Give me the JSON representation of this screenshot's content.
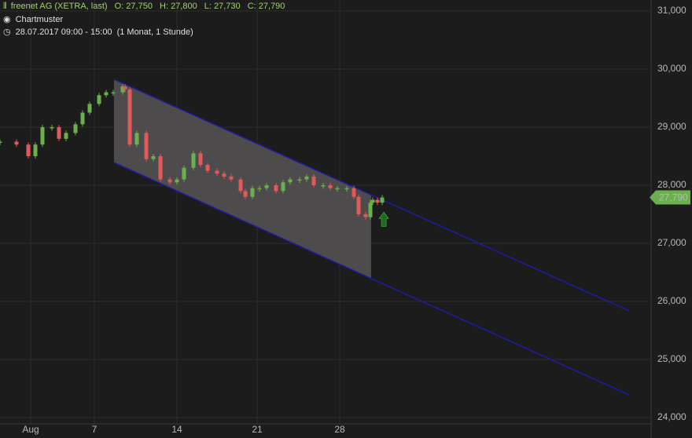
{
  "chart_data": {
    "type": "candlestick",
    "title": "freenet AG (XETRA, last)",
    "ohlc": [
      "O: 27,750",
      "H: 27,800",
      "L: 27,730",
      "C: 27,790"
    ],
    "pattern": "Chartmuster",
    "period": "28.07.2017 09:00 - 15:00",
    "interval": "(1 Monat, 1 Stunde)",
    "x": [
      0,
      7,
      12,
      15,
      18,
      22,
      25,
      28,
      32,
      35,
      38,
      42,
      45,
      48,
      52,
      53,
      55,
      58,
      62,
      65,
      68,
      72,
      75,
      78,
      82,
      85,
      88,
      92,
      95,
      98,
      102,
      104,
      107,
      110,
      113,
      117,
      120,
      123,
      127,
      130,
      133,
      137,
      140,
      143,
      147,
      150,
      152,
      155,
      157,
      158,
      160,
      162
    ],
    "values": [
      28750,
      28700,
      28500,
      28700,
      29000,
      29000,
      28800,
      28900,
      29050,
      29250,
      29400,
      29550,
      29600,
      29600,
      29700,
      29650,
      28700,
      28900,
      28450,
      28500,
      28100,
      28050,
      28100,
      28300,
      28550,
      28350,
      28250,
      28200,
      28150,
      28100,
      27900,
      27800,
      27950,
      27950,
      28000,
      27900,
      28050,
      28100,
      28100,
      28150,
      28000,
      28000,
      27950,
      27950,
      27950,
      27800,
      27500,
      27450,
      27700,
      27750,
      27700,
      27790
    ],
    "up_color": "#6ab04c",
    "down_color": "#e05a5a",
    "xlim": [
      0,
      276
    ],
    "xticks": [
      {
        "value": 13,
        "label": "Aug"
      },
      {
        "value": 40,
        "label": "7"
      },
      {
        "value": 75,
        "label": "14"
      },
      {
        "value": 109,
        "label": "21"
      },
      {
        "value": 144,
        "label": "28"
      }
    ],
    "ylim": [
      24000,
      31000
    ],
    "yticks": [
      {
        "value": 24000,
        "label": "24,000"
      },
      {
        "value": 25000,
        "label": "25,000"
      },
      {
        "value": 26000,
        "label": "26,000"
      },
      {
        "value": 27000,
        "label": "27,000"
      },
      {
        "value": 28000,
        "label": "28,000"
      },
      {
        "value": 29000,
        "label": "29,000"
      },
      {
        "value": 30000,
        "label": "30,000"
      },
      {
        "value": 31000,
        "label": "31,000"
      }
    ],
    "last": {
      "value": 27790,
      "label": "27,790",
      "color": "#6ab04c"
    },
    "channel": {
      "color": "#1c1ca8",
      "fill": "#5a5858",
      "end_x": 157.3,
      "upper": {
        "x": [
          48.3,
          266.7
        ],
        "y": [
          29824,
          25838
        ]
      },
      "lower": {
        "x": [
          48.3,
          266.7
        ],
        "y": [
          28392,
          24392
        ]
      }
    },
    "signal": {
      "x": 162.7,
      "y": 27400,
      "color": "#1e6b1e"
    },
    "grid": true
  }
}
